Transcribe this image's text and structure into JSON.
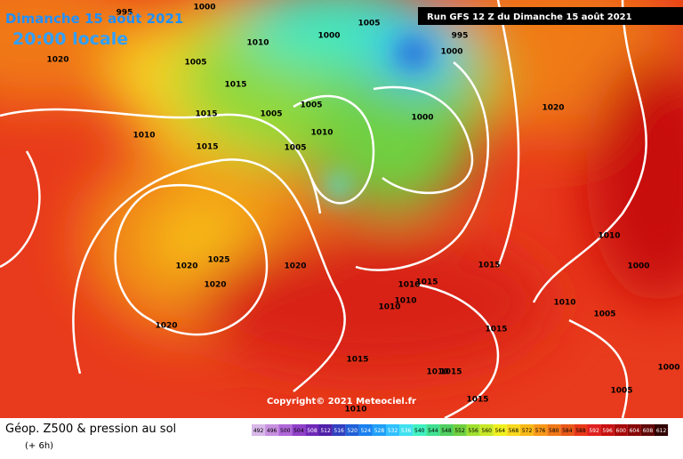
{
  "header": {
    "date": "Dimanche 15 août 2021",
    "time": "20:00 locale",
    "run": "Run GFS 12 Z du Dimanche 15 août 2021"
  },
  "copyright": "Copyright© 2021 Meteociel.fr",
  "legend": {
    "title": "Géop. Z500 & pression au sol",
    "step": "(+ 6h)",
    "values": [
      492,
      496,
      500,
      504,
      508,
      512,
      516,
      520,
      524,
      528,
      532,
      536,
      540,
      544,
      548,
      552,
      556,
      560,
      564,
      568,
      572,
      576,
      580,
      584,
      588,
      592,
      596,
      600,
      604,
      608,
      612
    ],
    "colors": [
      "#d8b8e8",
      "#c890e0",
      "#b068d8",
      "#9040c8",
      "#7028b8",
      "#5020a8",
      "#3040c0",
      "#2060d8",
      "#1880f0",
      "#20a0f8",
      "#30c0ff",
      "#40e0f0",
      "#40f0c0",
      "#40e090",
      "#50d060",
      "#70d040",
      "#a0e030",
      "#c8e828",
      "#f0f020",
      "#f8d820",
      "#f8b818",
      "#f89818",
      "#f07818",
      "#e85818",
      "#e83818",
      "#e02020",
      "#c81010",
      "#a80808",
      "#880808",
      "#600808",
      "#300000"
    ]
  },
  "isobars": [
    "1000",
    "995",
    "1005",
    "1000",
    "1010",
    "995",
    "1000",
    "1020",
    "1005",
    "1015",
    "1005",
    "1015",
    "1005",
    "1000",
    "1020",
    "1010",
    "1015",
    "1005",
    "1010",
    "1010",
    "1000",
    "1020",
    "1025",
    "1020",
    "1015",
    "1020",
    "1010",
    "1015",
    "1010",
    "1010",
    "1010",
    "1005",
    "1020",
    "1015",
    "1015",
    "1010",
    "1015",
    "1000",
    "1005",
    "1015",
    "1010"
  ]
}
